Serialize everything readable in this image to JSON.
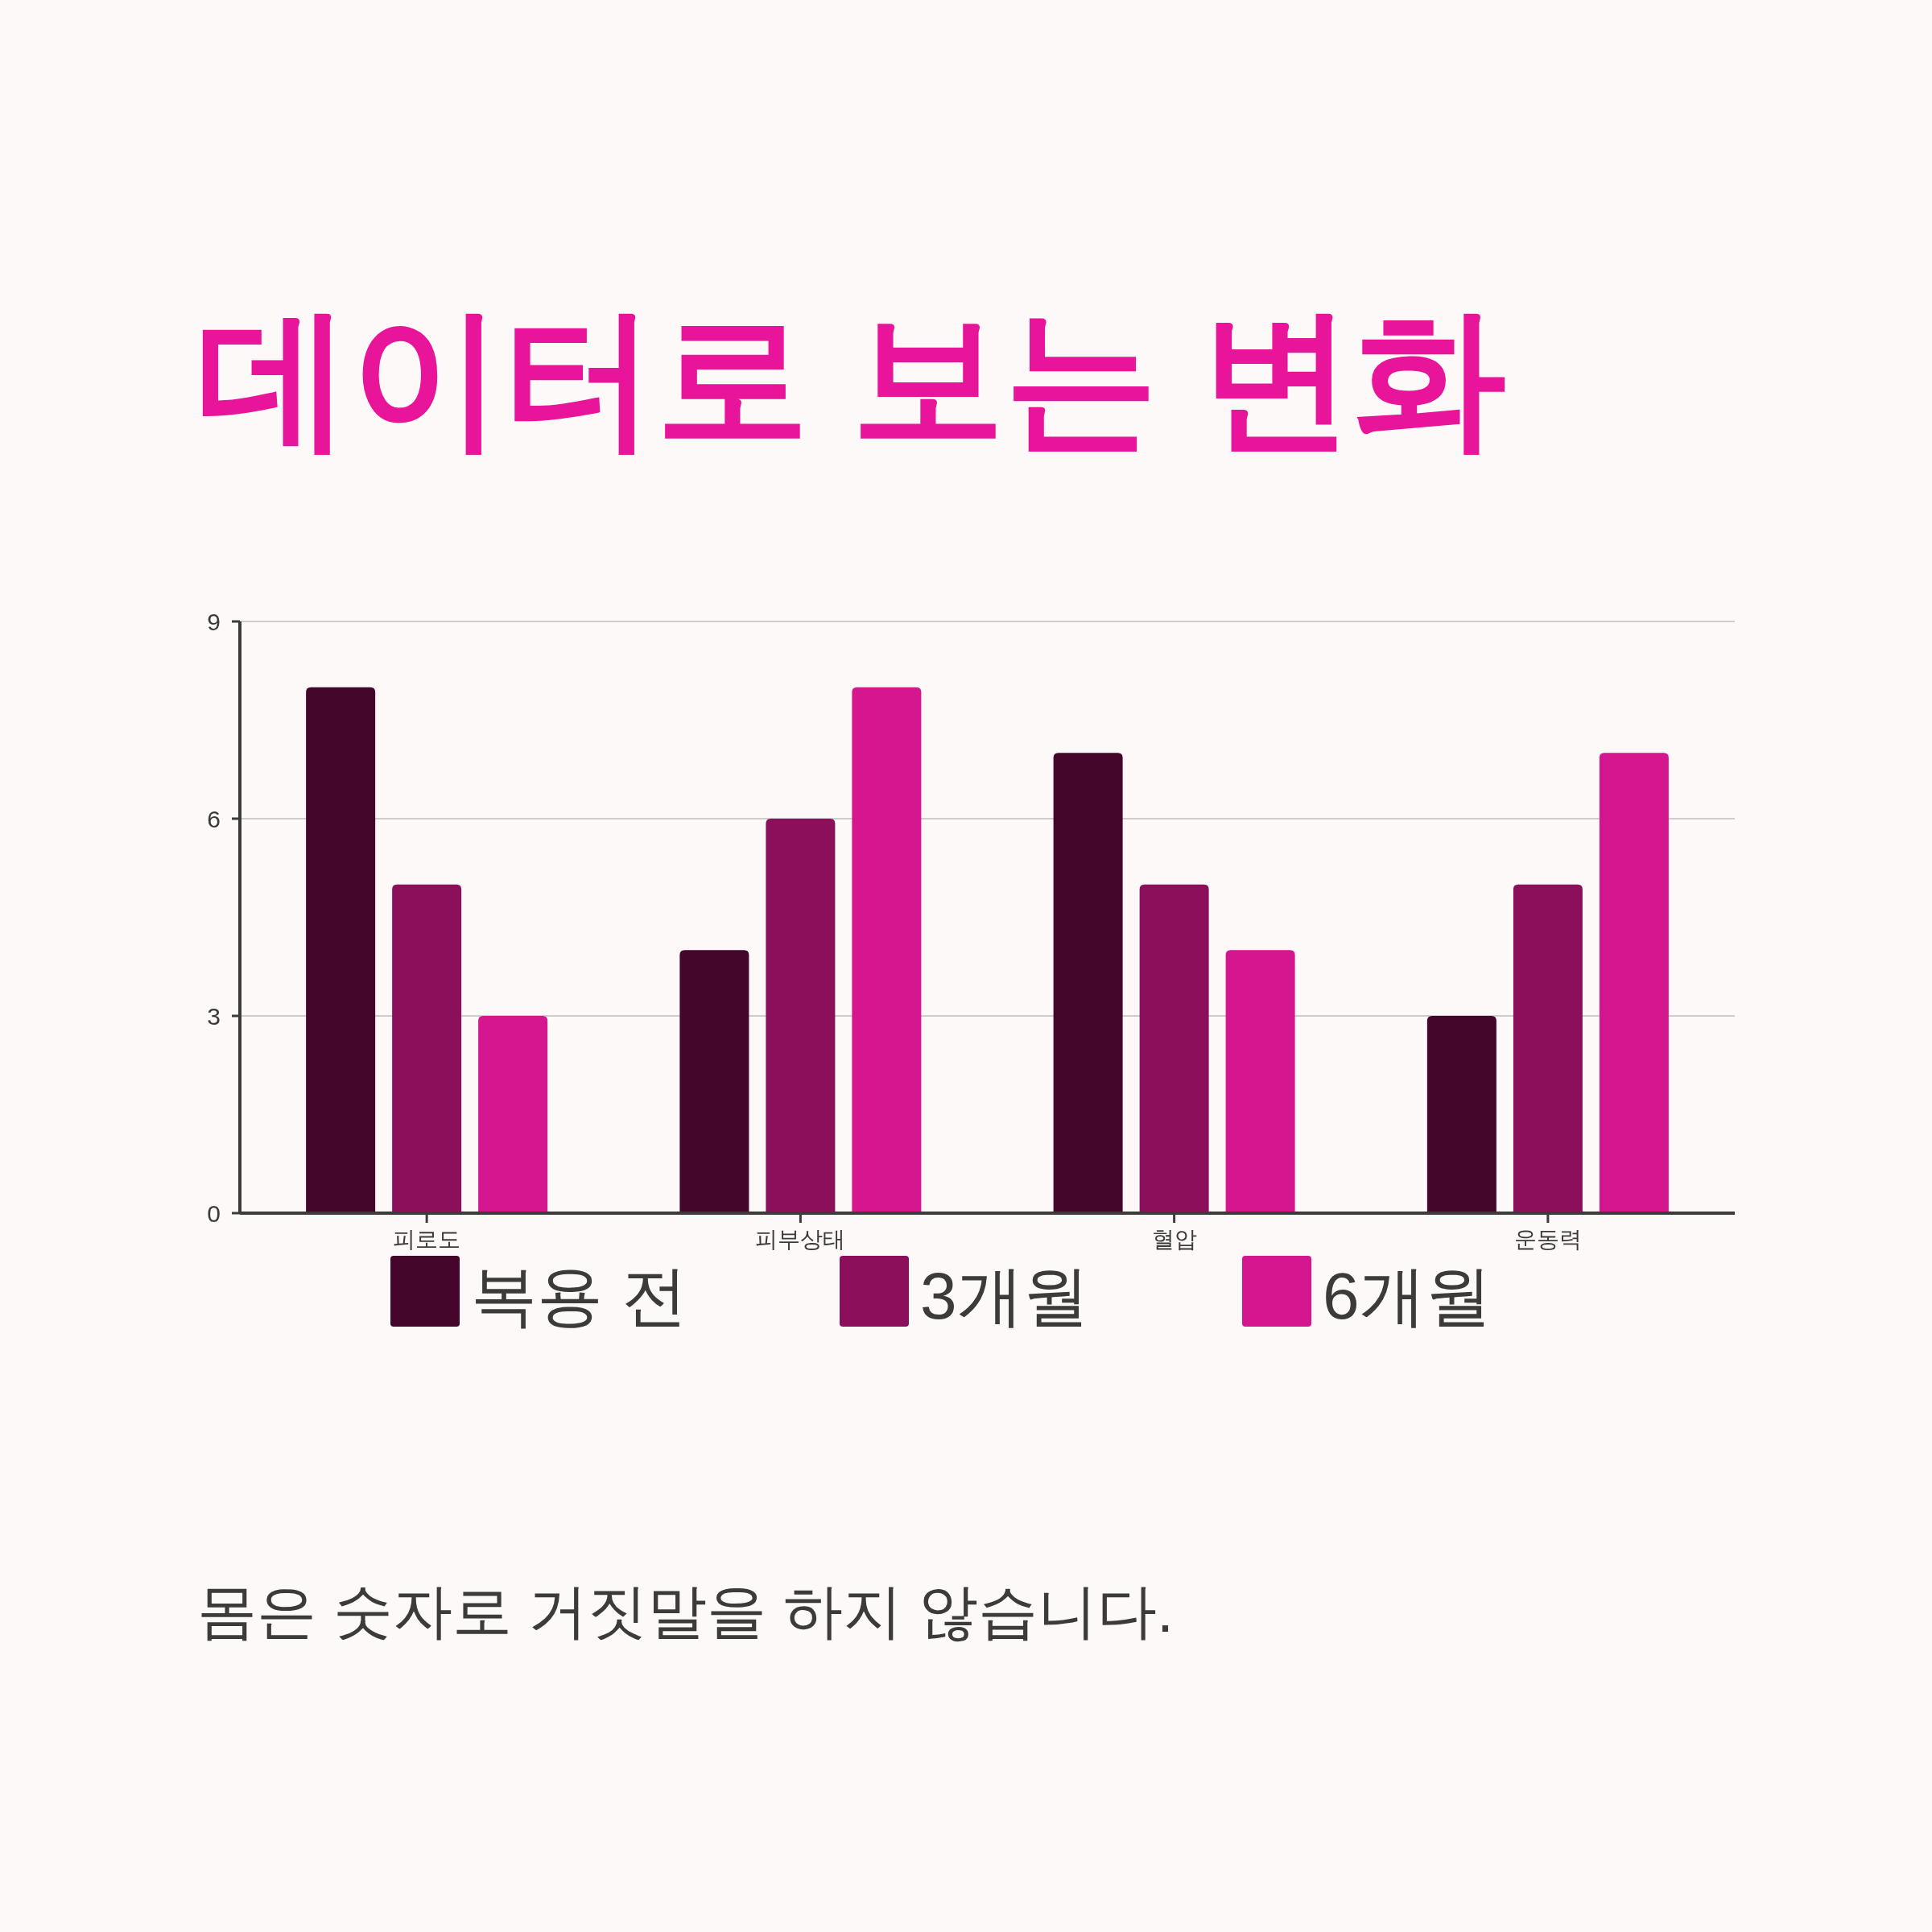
{
  "chart_data": {
    "type": "bar",
    "title": "데이터로 보는 변화",
    "categories": [
      "피로도",
      "피부상태",
      "혈압",
      "운동력"
    ],
    "series": [
      {
        "name": "복용 전",
        "color": "#45062c",
        "values": [
          8,
          4,
          7,
          3
        ]
      },
      {
        "name": "3개월",
        "color": "#8c0f5c",
        "values": [
          5,
          6,
          5,
          5
        ]
      },
      {
        "name": "6개월",
        "color": "#d4178f",
        "values": [
          3,
          8,
          4,
          7
        ]
      }
    ],
    "ylim": [
      0,
      9
    ],
    "yticks": [
      0,
      3,
      6,
      9
    ],
    "grid": "y",
    "legend": "bottom",
    "annotations": [
      "몸은 숫자로 거짓말을 하지 않습니다."
    ]
  }
}
